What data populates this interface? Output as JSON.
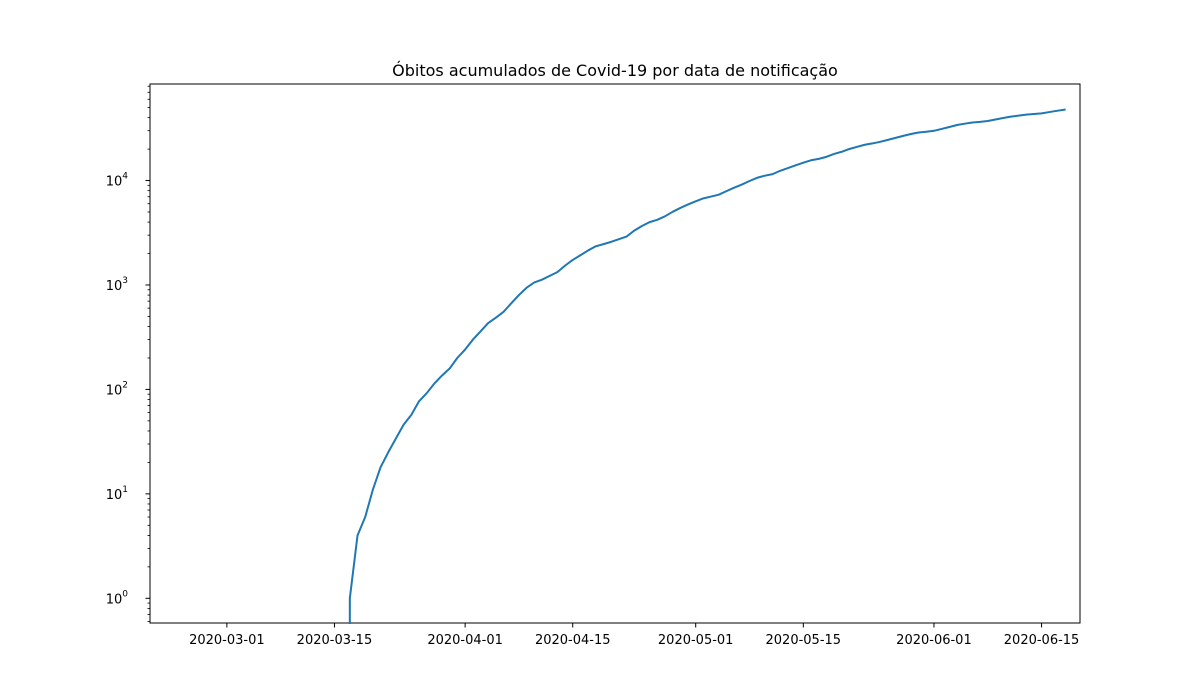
{
  "chart_data": {
    "type": "line",
    "title": "Óbitos acumulados de Covid-19 por data de notificação",
    "xlabel": "",
    "ylabel": "",
    "x_scale": "time",
    "y_scale": "log",
    "xlim": [
      "2020-02-20",
      "2020-06-20"
    ],
    "ylim": [
      0.58,
      84000
    ],
    "grid": false,
    "legend": "none",
    "x_ticks": [
      "2020-03-01",
      "2020-03-15",
      "2020-04-01",
      "2020-04-15",
      "2020-05-01",
      "2020-05-15",
      "2020-06-01",
      "2020-06-15"
    ],
    "y_ticks": [
      {
        "value": 1,
        "base": "10",
        "exp": "0"
      },
      {
        "value": 10,
        "base": "10",
        "exp": "1"
      },
      {
        "value": 100,
        "base": "10",
        "exp": "2"
      },
      {
        "value": 1000,
        "base": "10",
        "exp": "3"
      },
      {
        "value": 10000,
        "base": "10",
        "exp": "4"
      }
    ],
    "series": [
      {
        "color": "#1f77b4",
        "x": [
          "2020-03-17",
          "2020-03-18",
          "2020-03-19",
          "2020-03-20",
          "2020-03-21",
          "2020-03-22",
          "2020-03-23",
          "2020-03-24",
          "2020-03-25",
          "2020-03-26",
          "2020-03-27",
          "2020-03-28",
          "2020-03-29",
          "2020-03-30",
          "2020-03-31",
          "2020-04-01",
          "2020-04-02",
          "2020-04-03",
          "2020-04-04",
          "2020-04-05",
          "2020-04-06",
          "2020-04-07",
          "2020-04-08",
          "2020-04-09",
          "2020-04-10",
          "2020-04-11",
          "2020-04-12",
          "2020-04-13",
          "2020-04-14",
          "2020-04-15",
          "2020-04-16",
          "2020-04-17",
          "2020-04-18",
          "2020-04-19",
          "2020-04-20",
          "2020-04-21",
          "2020-04-22",
          "2020-04-23",
          "2020-04-24",
          "2020-04-25",
          "2020-04-26",
          "2020-04-27",
          "2020-04-28",
          "2020-04-29",
          "2020-04-30",
          "2020-05-01",
          "2020-05-02",
          "2020-05-03",
          "2020-05-04",
          "2020-05-05",
          "2020-05-06",
          "2020-05-07",
          "2020-05-08",
          "2020-05-09",
          "2020-05-10",
          "2020-05-11",
          "2020-05-12",
          "2020-05-13",
          "2020-05-14",
          "2020-05-15",
          "2020-05-16",
          "2020-05-17",
          "2020-05-18",
          "2020-05-19",
          "2020-05-20",
          "2020-05-21",
          "2020-05-22",
          "2020-05-23",
          "2020-05-24",
          "2020-05-25",
          "2020-05-26",
          "2020-05-27",
          "2020-05-28",
          "2020-05-29",
          "2020-05-30",
          "2020-05-31",
          "2020-06-01",
          "2020-06-02",
          "2020-06-03",
          "2020-06-04",
          "2020-06-05",
          "2020-06-06",
          "2020-06-07",
          "2020-06-08",
          "2020-06-09",
          "2020-06-10",
          "2020-06-11",
          "2020-06-12",
          "2020-06-13",
          "2020-06-14",
          "2020-06-15",
          "2020-06-16",
          "2020-06-17",
          "2020-06-18"
        ],
        "y": [
          1,
          4,
          6,
          11,
          18,
          25,
          34,
          46,
          57,
          77,
          92,
          114,
          136,
          159,
          201,
          241,
          299,
          359,
          432,
          486,
          553,
          667,
          800,
          941,
          1057,
          1124,
          1223,
          1328,
          1532,
          1736,
          1924,
          2141,
          2347,
          2462,
          2587,
          2741,
          2906,
          3313,
          3670,
          3997,
          4205,
          4543,
          5017,
          5466,
          5901,
          6329,
          6750,
          7025,
          7321,
          7921,
          8536,
          9146,
          9897,
          10627,
          11123,
          11519,
          12400,
          13149,
          13993,
          14817,
          15633,
          16118,
          16853,
          17971,
          18859,
          20047,
          21048,
          22013,
          22666,
          23473,
          24512,
          25598,
          26754,
          27878,
          28834,
          29314,
          29937,
          31199,
          32548,
          34021,
          35026,
          35930,
          36455,
          37134,
          38406,
          39680,
          40919,
          41828,
          42720,
          43332,
          43959,
          45241,
          46510,
          47748
        ]
      }
    ]
  }
}
